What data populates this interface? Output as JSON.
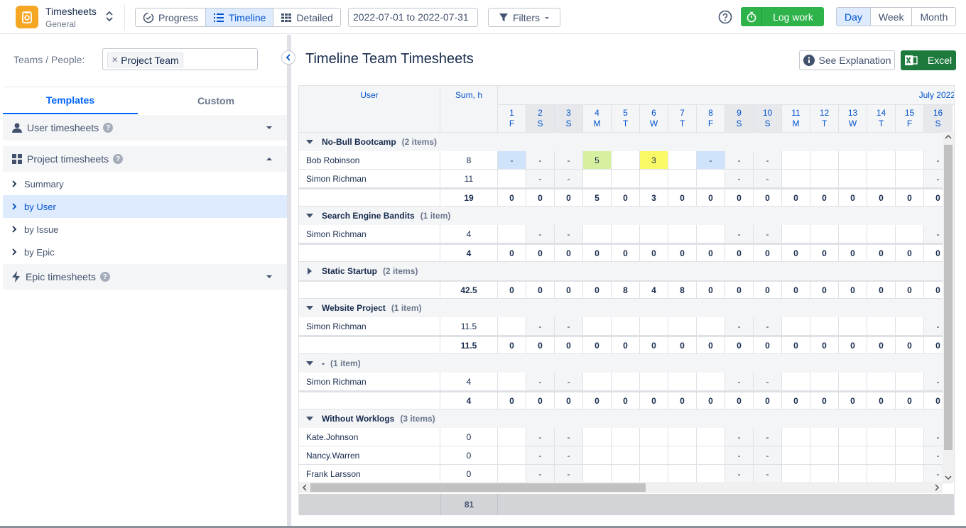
{
  "app": {
    "name": "Timesheets",
    "sub": "General"
  },
  "views": [
    {
      "label": "Progress"
    },
    {
      "label": "Timeline",
      "active": true
    },
    {
      "label": "Detailed"
    }
  ],
  "daterange": "2022-07-01 to 2022-07-31",
  "filters_label": "Filters",
  "logwork_label": "Log work",
  "periods": [
    {
      "label": "Day",
      "active": true
    },
    {
      "label": "Week"
    },
    {
      "label": "Month"
    }
  ],
  "sidebar": {
    "teams_label": "Teams / People:",
    "chip": "Project Team",
    "tabs": [
      "Templates",
      "Custom"
    ],
    "sections": {
      "user": "User timesheets",
      "project": "Project timesheets",
      "epic": "Epic timesheets"
    },
    "items": [
      "Summary",
      "by User",
      "by Issue",
      "by Epic"
    ]
  },
  "main": {
    "title": "Timeline Team Timesheets",
    "see_explanation": "See Explanation",
    "excel": "Excel"
  },
  "grid": {
    "col_user": "User",
    "col_sum": "Sum, h",
    "month": "July 2022",
    "days": [
      {
        "d": "1",
        "w": "F"
      },
      {
        "d": "2",
        "w": "S"
      },
      {
        "d": "3",
        "w": "S"
      },
      {
        "d": "4",
        "w": "M"
      },
      {
        "d": "5",
        "w": "T"
      },
      {
        "d": "6",
        "w": "W"
      },
      {
        "d": "7",
        "w": "T"
      },
      {
        "d": "8",
        "w": "F"
      },
      {
        "d": "9",
        "w": "S"
      },
      {
        "d": "10",
        "w": "S"
      },
      {
        "d": "11",
        "w": "M"
      },
      {
        "d": "12",
        "w": "T"
      },
      {
        "d": "13",
        "w": "W"
      },
      {
        "d": "14",
        "w": "T"
      },
      {
        "d": "15",
        "w": "F"
      },
      {
        "d": "16",
        "w": "S"
      }
    ],
    "weekend_idx": [
      1,
      2,
      8,
      9,
      15
    ],
    "rows": [
      {
        "type": "group",
        "name": "No-Bull Bootcamp",
        "count": "(2 items)",
        "open": true
      },
      {
        "type": "user",
        "name": "Bob Robinson",
        "sum": "8",
        "cells": {
          "0": "-",
          "1": "-",
          "2": "-",
          "3": "5",
          "5": "3",
          "7": "-",
          "8": "-",
          "9": "-",
          "15": "-"
        },
        "hl": {
          "0": "#cfe3fb",
          "3": "#d6f0a0",
          "5": "#fafa66",
          "7": "#cfe3fb"
        }
      },
      {
        "type": "user",
        "name": "Simon Richman",
        "sum": "11",
        "cells": {
          "1": "-",
          "2": "-",
          "8": "-",
          "9": "-",
          "15": "-"
        }
      },
      {
        "type": "total",
        "sum": "19",
        "vals": [
          "0",
          "0",
          "0",
          "5",
          "0",
          "3",
          "0",
          "0",
          "0",
          "0",
          "0",
          "0",
          "0",
          "0",
          "0",
          "0"
        ]
      },
      {
        "type": "group",
        "name": "Search Engine Bandits",
        "count": "(1 item)",
        "open": true
      },
      {
        "type": "user",
        "name": "Simon Richman",
        "sum": "4",
        "cells": {
          "1": "-",
          "2": "-",
          "8": "-",
          "9": "-",
          "15": "-"
        }
      },
      {
        "type": "total",
        "sum": "4",
        "vals": [
          "0",
          "0",
          "0",
          "0",
          "0",
          "0",
          "0",
          "0",
          "0",
          "0",
          "0",
          "0",
          "0",
          "0",
          "0",
          "0"
        ]
      },
      {
        "type": "group",
        "name": "Static Startup",
        "count": "(2 items)",
        "open": false
      },
      {
        "type": "total",
        "sum": "42.5",
        "vals": [
          "0",
          "0",
          "0",
          "0",
          "8",
          "4",
          "8",
          "0",
          "0",
          "0",
          "0",
          "0",
          "0",
          "0",
          "0",
          "0"
        ]
      },
      {
        "type": "group",
        "name": "Website Project",
        "count": "(1 item)",
        "open": true
      },
      {
        "type": "user",
        "name": "Simon Richman",
        "sum": "11.5",
        "cells": {
          "1": "-",
          "2": "-",
          "8": "-",
          "9": "-",
          "15": "-"
        }
      },
      {
        "type": "total",
        "sum": "11.5",
        "vals": [
          "0",
          "0",
          "0",
          "0",
          "0",
          "0",
          "0",
          "0",
          "0",
          "0",
          "0",
          "0",
          "0",
          "0",
          "0",
          "0"
        ]
      },
      {
        "type": "group",
        "name": "-",
        "count": "(1 item)",
        "open": true
      },
      {
        "type": "user",
        "name": "Simon Richman",
        "sum": "4",
        "cells": {
          "1": "-",
          "2": "-",
          "8": "-",
          "9": "-",
          "15": "-"
        }
      },
      {
        "type": "total",
        "sum": "4",
        "vals": [
          "0",
          "0",
          "0",
          "0",
          "0",
          "0",
          "0",
          "0",
          "0",
          "0",
          "0",
          "0",
          "0",
          "0",
          "0",
          "0"
        ]
      },
      {
        "type": "group",
        "name": "Without Worklogs",
        "count": "(3 items)",
        "open": true
      },
      {
        "type": "user",
        "name": "Kate.Johnson",
        "sum": "0",
        "cells": {
          "1": "-",
          "2": "-",
          "8": "-",
          "9": "-",
          "15": "-"
        }
      },
      {
        "type": "user",
        "name": "Nancy.Warren",
        "sum": "0",
        "cells": {
          "1": "-",
          "2": "-",
          "8": "-",
          "9": "-",
          "15": "-"
        }
      },
      {
        "type": "user",
        "name": "Frank Larsson",
        "sum": "0",
        "cells": {
          "1": "-",
          "2": "-",
          "8": "-",
          "9": "-",
          "15": "-"
        }
      }
    ],
    "grand_total": "81"
  }
}
